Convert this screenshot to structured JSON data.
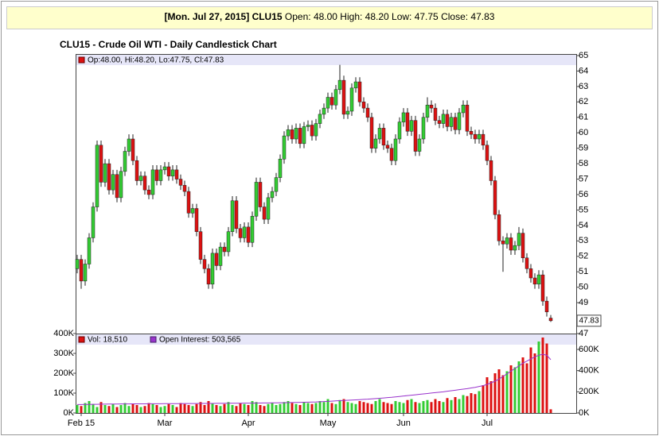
{
  "chart_data": {
    "type": "candlestick",
    "header": {
      "bold": "[Mon. Jul 27, 2015] CLU15",
      "rest": "Open: 48.00 High: 48.20 Low: 47.75 Close: 47.83"
    },
    "title": "CLU15 - Crude Oil WTI - Daily Candlestick Chart",
    "price_legend": "Op:48.00, Hi:48.20, Lo:47.75, Cl:47.83",
    "volume_legend": "Vol: 18,510",
    "oi_legend": "Open Interest: 503,565",
    "last_label": "47.83",
    "up_color": "#33cc33",
    "down_color": "#dd1111",
    "oi_color": "#9933cc",
    "grid": false,
    "categories": [
      null,
      "Feb 15",
      null,
      null,
      null,
      null,
      null,
      null,
      null,
      null,
      null,
      null,
      null,
      null,
      null,
      null,
      null,
      null,
      null,
      null,
      null,
      null,
      "Mar",
      null,
      null,
      null,
      null,
      null,
      null,
      null,
      null,
      null,
      null,
      null,
      null,
      null,
      null,
      null,
      null,
      null,
      null,
      null,
      null,
      "Apr",
      null,
      null,
      null,
      null,
      null,
      null,
      null,
      null,
      null,
      null,
      null,
      null,
      null,
      null,
      null,
      null,
      null,
      null,
      null,
      "May",
      null,
      null,
      null,
      null,
      null,
      null,
      null,
      null,
      null,
      null,
      null,
      null,
      null,
      null,
      null,
      null,
      null,
      null,
      "Jun",
      null,
      null,
      null,
      null,
      null,
      null,
      null,
      null,
      null,
      null,
      null,
      null,
      null,
      null,
      null,
      null,
      null,
      null,
      null,
      null,
      "Jul",
      null,
      null,
      null,
      null,
      null,
      null,
      null,
      null,
      null,
      null,
      null,
      null,
      null,
      null,
      null,
      null
    ],
    "open": [
      51.2,
      51.8,
      50.4,
      51.5,
      53.2,
      55.2,
      59.2,
      56.8,
      58.0,
      56.3,
      57.3,
      55.8,
      57.5,
      58.8,
      59.6,
      58.2,
      56.9,
      57.2,
      56.3,
      56.0,
      57.6,
      56.9,
      57.6,
      57.8,
      57.2,
      57.6,
      57.0,
      56.6,
      56.2,
      54.8,
      55.1,
      53.6,
      51.8,
      51.2,
      50.2,
      52.2,
      51.4,
      52.6,
      52.3,
      53.6,
      55.6,
      53.8,
      53.2,
      53.9,
      52.9,
      54.6,
      56.8,
      55.2,
      54.4,
      55.8,
      56.2,
      57.1,
      58.3,
      59.8,
      60.2,
      59.6,
      60.3,
      59.3,
      60.4,
      60.5,
      59.8,
      60.6,
      61.2,
      61.6,
      62.3,
      61.8,
      62.8,
      63.4,
      61.2,
      61.4,
      62.9,
      63.3,
      62.0,
      61.6,
      61.0,
      59.0,
      59.6,
      60.3,
      59.2,
      59.0,
      58.2,
      59.6,
      60.7,
      61.3,
      60.1,
      60.8,
      58.8,
      59.6,
      61.0,
      61.8,
      61.6,
      60.8,
      60.6,
      61.2,
      60.4,
      61.0,
      60.2,
      61.3,
      61.8,
      60.1,
      59.9,
      59.6,
      59.9,
      59.2,
      58.2,
      56.9,
      54.7,
      53.0,
      52.8,
      53.2,
      52.4,
      52.7,
      53.5,
      51.9,
      51.2,
      50.6,
      50.2,
      50.8,
      49.1,
      48.0
    ],
    "high": [
      52.1,
      52.1,
      51.8,
      53.5,
      55.5,
      59.5,
      59.5,
      58.3,
      58.3,
      57.6,
      57.6,
      57.8,
      59.1,
      59.9,
      59.9,
      58.5,
      57.5,
      57.5,
      56.6,
      57.9,
      57.9,
      57.9,
      58.1,
      58.1,
      57.9,
      57.9,
      57.3,
      56.9,
      56.5,
      55.4,
      55.4,
      53.9,
      52.1,
      51.5,
      52.5,
      52.5,
      52.9,
      52.9,
      53.9,
      55.9,
      55.9,
      54.1,
      54.2,
      54.2,
      54.9,
      57.1,
      57.1,
      55.5,
      56.1,
      56.5,
      57.4,
      58.6,
      60.1,
      60.5,
      60.5,
      60.6,
      60.6,
      60.7,
      60.8,
      60.8,
      60.9,
      61.5,
      61.9,
      62.6,
      62.6,
      63.1,
      64.4,
      63.7,
      61.7,
      63.2,
      63.6,
      63.6,
      62.3,
      61.9,
      61.3,
      59.9,
      60.6,
      60.6,
      59.5,
      59.3,
      59.9,
      61.0,
      61.6,
      61.6,
      61.1,
      61.1,
      59.9,
      61.3,
      62.3,
      62.1,
      61.9,
      61.1,
      61.5,
      61.5,
      61.3,
      61.3,
      61.6,
      62.1,
      62.1,
      60.4,
      60.2,
      60.2,
      60.2,
      59.5,
      58.5,
      57.2,
      55.0,
      53.3,
      53.5,
      53.5,
      53.0,
      53.9,
      53.8,
      52.2,
      51.5,
      50.9,
      51.1,
      51.1,
      49.4,
      48.2
    ],
    "low": [
      50.9,
      49.9,
      50.1,
      51.2,
      52.9,
      54.9,
      56.5,
      56.5,
      56.0,
      56.0,
      55.5,
      55.5,
      57.2,
      58.5,
      57.9,
      56.6,
      56.6,
      56.0,
      55.7,
      55.7,
      56.6,
      56.6,
      57.3,
      56.9,
      56.9,
      56.7,
      56.3,
      55.9,
      54.5,
      54.5,
      53.3,
      51.5,
      50.9,
      49.9,
      49.9,
      51.1,
      51.1,
      52.0,
      52.0,
      53.3,
      53.5,
      52.9,
      52.9,
      52.6,
      52.6,
      54.3,
      54.9,
      54.1,
      54.1,
      55.5,
      55.9,
      56.8,
      58.0,
      59.5,
      59.3,
      59.3,
      59.0,
      59.0,
      60.1,
      59.5,
      59.5,
      60.3,
      60.9,
      61.3,
      61.5,
      61.5,
      62.5,
      60.9,
      60.9,
      61.1,
      62.6,
      61.7,
      61.3,
      60.7,
      58.7,
      58.7,
      59.3,
      58.9,
      58.7,
      57.9,
      57.9,
      59.3,
      60.4,
      59.8,
      59.8,
      58.5,
      58.5,
      59.3,
      60.7,
      61.3,
      60.5,
      60.3,
      60.3,
      60.1,
      60.1,
      59.9,
      59.9,
      61.0,
      59.8,
      59.6,
      59.3,
      59.3,
      58.9,
      57.9,
      56.6,
      54.4,
      52.7,
      51.0,
      52.5,
      52.1,
      52.1,
      52.4,
      51.6,
      50.9,
      50.3,
      49.9,
      49.9,
      48.8,
      48.1,
      47.75
    ],
    "close": [
      51.8,
      50.4,
      51.5,
      53.2,
      55.2,
      59.2,
      56.8,
      58.0,
      56.3,
      57.3,
      55.8,
      57.5,
      58.8,
      59.6,
      58.2,
      56.9,
      57.2,
      56.3,
      56.0,
      57.6,
      56.9,
      57.6,
      57.8,
      57.2,
      57.6,
      57.0,
      56.6,
      56.2,
      54.8,
      55.1,
      53.6,
      51.8,
      51.2,
      50.2,
      52.2,
      51.4,
      52.6,
      52.3,
      53.6,
      55.6,
      53.8,
      53.2,
      53.9,
      52.9,
      54.6,
      56.8,
      55.2,
      54.4,
      55.8,
      56.2,
      57.1,
      58.3,
      59.8,
      60.2,
      59.6,
      60.3,
      59.3,
      60.4,
      60.5,
      59.8,
      60.6,
      61.2,
      61.6,
      62.3,
      61.8,
      62.8,
      63.4,
      61.2,
      61.4,
      62.9,
      63.3,
      62.0,
      61.6,
      61.0,
      59.0,
      59.6,
      60.3,
      59.2,
      59.0,
      58.2,
      59.6,
      60.7,
      61.3,
      60.1,
      60.8,
      58.8,
      59.6,
      61.0,
      61.8,
      61.6,
      60.8,
      60.6,
      61.2,
      60.4,
      61.0,
      60.2,
      61.3,
      61.8,
      60.1,
      59.9,
      59.6,
      59.9,
      59.2,
      58.2,
      56.9,
      54.7,
      53.0,
      52.8,
      53.2,
      52.4,
      52.7,
      53.5,
      51.9,
      51.2,
      50.6,
      50.2,
      50.8,
      49.1,
      48.4,
      47.83
    ],
    "volume": [
      40000,
      35000,
      50000,
      60000,
      45000,
      30000,
      55000,
      40000,
      35000,
      45000,
      30000,
      40000,
      50000,
      35000,
      45000,
      40000,
      30000,
      35000,
      50000,
      45000,
      40000,
      30000,
      35000,
      45000,
      40000,
      30000,
      50000,
      45000,
      40000,
      35000,
      45000,
      55000,
      40000,
      60000,
      50000,
      40000,
      35000,
      45000,
      55000,
      40000,
      35000,
      50000,
      45000,
      40000,
      60000,
      55000,
      40000,
      35000,
      45000,
      50000,
      40000,
      45000,
      55000,
      60000,
      50000,
      45000,
      40000,
      55000,
      50000,
      45000,
      50000,
      60000,
      55000,
      70000,
      50000,
      45000,
      65000,
      70000,
      55000,
      50000,
      45000,
      60000,
      55000,
      50000,
      45000,
      60000,
      70000,
      55000,
      50000,
      45000,
      60000,
      55000,
      50000,
      65000,
      70000,
      55000,
      50000,
      60000,
      65000,
      55000,
      70000,
      60000,
      55000,
      75000,
      65000,
      80000,
      70000,
      90000,
      85000,
      100000,
      95000,
      110000,
      140000,
      180000,
      160000,
      200000,
      220000,
      190000,
      210000,
      240000,
      230000,
      260000,
      280000,
      250000,
      330000,
      300000,
      360000,
      380000,
      350000,
      18510
    ],
    "open_interest": [
      80000,
      80000,
      81000,
      81000,
      82000,
      82000,
      83000,
      83000,
      84000,
      84000,
      84000,
      85000,
      85000,
      85000,
      86000,
      86000,
      86000,
      86000,
      87000,
      87000,
      87000,
      87000,
      88000,
      88000,
      88000,
      88000,
      88000,
      89000,
      89000,
      89000,
      89000,
      90000,
      90000,
      90000,
      90000,
      91000,
      91000,
      91000,
      92000,
      92000,
      92000,
      92000,
      93000,
      93000,
      93000,
      94000,
      94000,
      95000,
      95000,
      96000,
      96000,
      97000,
      97000,
      98000,
      98000,
      99000,
      100000,
      101000,
      102000,
      103000,
      104000,
      106000,
      108000,
      110000,
      112000,
      114000,
      116000,
      118000,
      120000,
      122000,
      124000,
      126000,
      128000,
      130000,
      133000,
      136000,
      139000,
      142000,
      145000,
      148000,
      152000,
      156000,
      160000,
      164000,
      168000,
      172000,
      176000,
      180000,
      184000,
      188000,
      192000,
      196000,
      200000,
      205000,
      210000,
      215000,
      220000,
      225000,
      230000,
      236000,
      242000,
      250000,
      258000,
      270000,
      285000,
      300000,
      320000,
      345000,
      370000,
      395000,
      420000,
      445000,
      470000,
      490000,
      510000,
      530000,
      545000,
      555000,
      545000,
      503565
    ],
    "ylim": [
      47,
      65
    ],
    "yticks": [
      47,
      49,
      50,
      51,
      52,
      53,
      54,
      55,
      56,
      57,
      58,
      59,
      60,
      61,
      62,
      63,
      64,
      65
    ],
    "vlim": [
      0,
      400000
    ],
    "vticks": [
      {
        "value": 0,
        "label": "0K"
      },
      {
        "value": 100000,
        "label": "100K"
      },
      {
        "value": 200000,
        "label": "200K"
      },
      {
        "value": 300000,
        "label": "300K"
      },
      {
        "value": 400000,
        "label": "400K"
      }
    ],
    "y2lim": [
      0,
      750000
    ],
    "y2ticks": [
      {
        "value": 0,
        "label": "0K"
      },
      {
        "value": 200000,
        "label": "200K"
      },
      {
        "value": 400000,
        "label": "400K"
      },
      {
        "value": 600000,
        "label": "600K"
      }
    ]
  }
}
